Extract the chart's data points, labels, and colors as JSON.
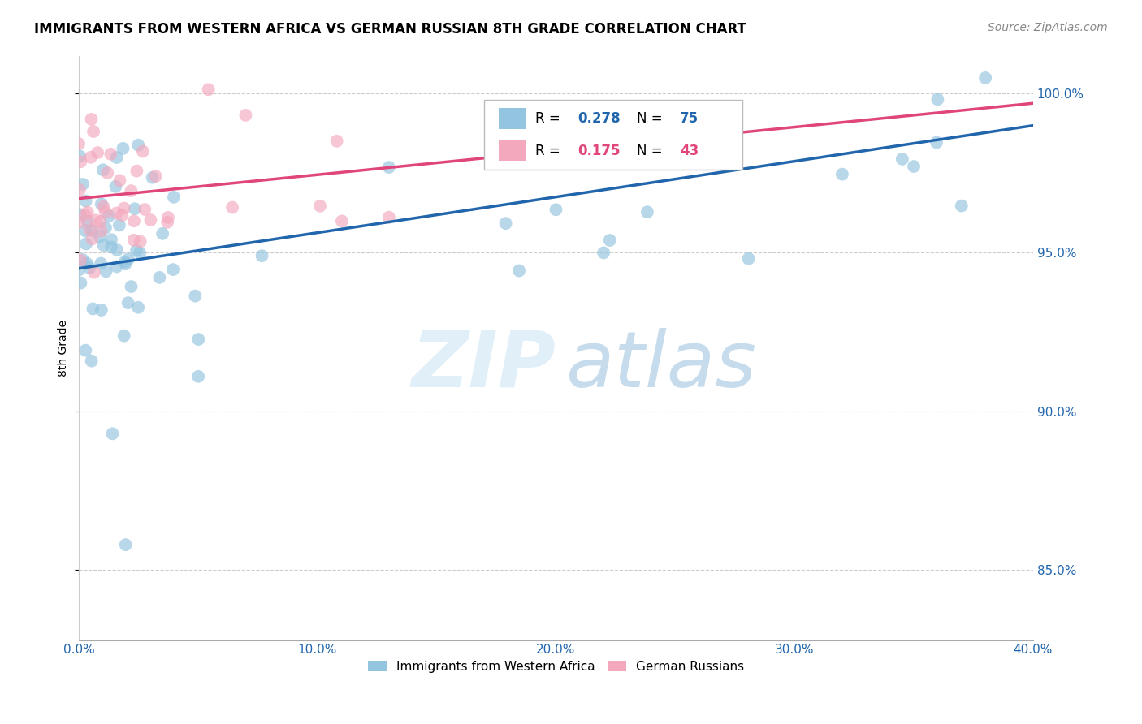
{
  "title": "IMMIGRANTS FROM WESTERN AFRICA VS GERMAN RUSSIAN 8TH GRADE CORRELATION CHART",
  "source": "Source: ZipAtlas.com",
  "ylabel": "8th Grade",
  "xlim": [
    0.0,
    0.4
  ],
  "ylim": [
    0.828,
    1.012
  ],
  "xticks": [
    0.0,
    0.05,
    0.1,
    0.15,
    0.2,
    0.25,
    0.3,
    0.35,
    0.4
  ],
  "xtick_labels": [
    "0.0%",
    "",
    "10.0%",
    "",
    "20.0%",
    "",
    "30.0%",
    "",
    "40.0%"
  ],
  "yticks": [
    0.85,
    0.9,
    0.95,
    1.0
  ],
  "ytick_labels": [
    "85.0%",
    "90.0%",
    "95.0%",
    "100.0%"
  ],
  "blue_R": 0.278,
  "blue_N": 75,
  "pink_R": 0.175,
  "pink_N": 43,
  "blue_color": "#93c4e0",
  "pink_color": "#f4a8bd",
  "blue_line_color": "#2166ac",
  "pink_line_color": "#e0457b",
  "blue_line_x0": 0.0,
  "blue_line_y0": 0.945,
  "blue_line_x1": 0.4,
  "blue_line_y1": 0.99,
  "pink_line_x0": 0.0,
  "pink_line_y0": 0.967,
  "pink_line_x1": 0.4,
  "pink_line_y1": 0.997,
  "watermark_zip": "ZIP",
  "watermark_atlas": "atlas",
  "legend_blue": "Immigrants from Western Africa",
  "legend_pink": "German Russians"
}
